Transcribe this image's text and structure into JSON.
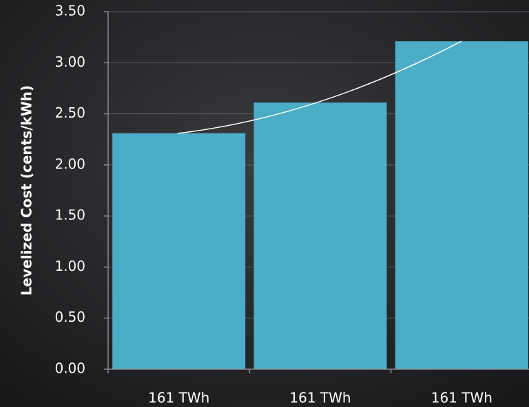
{
  "chart_data": {
    "type": "bar",
    "y_label": "Levelized Cost (cents/kWh)",
    "categories": [
      "161 TWh",
      "161 TWh",
      "161 TWh"
    ],
    "values": [
      2.31,
      2.61,
      3.21
    ],
    "color": "#4badc6",
    "ylim": [
      0,
      3.5
    ],
    "yticks": [
      {
        "value": 0,
        "label": "0.00"
      },
      {
        "value": 0.5,
        "label": "0.50"
      },
      {
        "value": 1,
        "label": "1.00"
      },
      {
        "value": 1.5,
        "label": "1.50"
      },
      {
        "value": 2,
        "label": "2.00"
      },
      {
        "value": 2.5,
        "label": "2.50"
      },
      {
        "value": 3,
        "label": "3.00"
      },
      {
        "value": 3.5,
        "label": "3.50"
      }
    ],
    "grid": true
  }
}
